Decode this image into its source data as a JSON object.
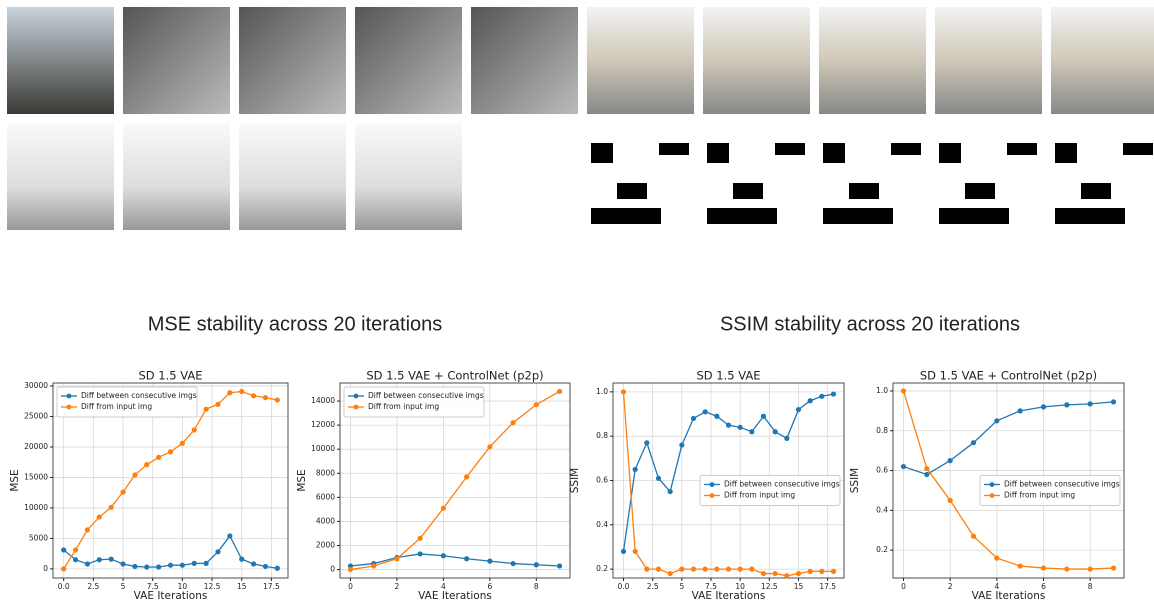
{
  "headings": [
    "MSE stability across 20 iterations",
    "SSIM stability across 20 iterations"
  ],
  "chart_data": [
    {
      "type": "line",
      "title": "SD 1.5 VAE",
      "x_label": "VAE Iterations",
      "y_label": "MSE",
      "x": [
        0,
        1,
        2,
        3,
        4,
        5,
        6,
        7,
        8,
        9,
        10,
        11,
        12,
        13,
        14,
        15,
        16,
        17,
        18
      ],
      "series": [
        {
          "name": "Diff between consecutive imgs",
          "color": "#1f77b4",
          "values": [
            3100,
            1500,
            800,
            1500,
            1600,
            800,
            400,
            300,
            300,
            600,
            600,
            900,
            900,
            2800,
            5400,
            1600,
            800,
            400,
            100
          ]
        },
        {
          "name": "Diff from input img",
          "color": "#ff7f0e",
          "values": [
            0,
            3100,
            6400,
            8500,
            10100,
            12600,
            15400,
            17100,
            18300,
            19200,
            20600,
            22800,
            26200,
            27000,
            28900,
            29100,
            28400,
            28100,
            27700
          ]
        }
      ],
      "xlim": [
        -0.9,
        18.9
      ],
      "ylim": [
        -1500,
        30500
      ],
      "xticks": [
        {
          "value": 0,
          "label": "0.0"
        },
        2.5,
        5,
        7.5,
        10,
        12.5,
        15,
        17.5
      ],
      "yticks": [
        0,
        5000,
        10000,
        15000,
        20000,
        25000,
        30000
      ],
      "grid": true,
      "legend": "upper-left"
    },
    {
      "type": "line",
      "title": "SD 1.5 VAE + ControlNet (p2p)",
      "x_label": "VAE Iterations",
      "y_label": "MSE",
      "x": [
        0,
        1,
        2,
        3,
        4,
        5,
        6,
        7,
        8,
        9
      ],
      "series": [
        {
          "name": "Diff between consecutive imgs",
          "color": "#1f77b4",
          "values": [
            300,
            500,
            1000,
            1300,
            1150,
            900,
            700,
            500,
            400,
            300
          ]
        },
        {
          "name": "Diff from input img",
          "color": "#ff7f0e",
          "values": [
            0,
            300,
            900,
            2600,
            5100,
            7700,
            10200,
            12200,
            13700,
            14800
          ]
        }
      ],
      "xlim": [
        -0.45,
        9.45
      ],
      "ylim": [
        -700,
        15500
      ],
      "xticks": [
        0,
        2,
        4,
        6,
        8
      ],
      "yticks": [
        0,
        2000,
        4000,
        6000,
        8000,
        10000,
        12000,
        14000
      ],
      "grid": true,
      "legend": "upper-left"
    },
    {
      "type": "line",
      "title": "SD 1.5 VAE",
      "x_label": "VAE Iterations",
      "y_label": "SSIM",
      "x": [
        0,
        1,
        2,
        3,
        4,
        5,
        6,
        7,
        8,
        9,
        10,
        11,
        12,
        13,
        14,
        15,
        16,
        17,
        18
      ],
      "series": [
        {
          "name": "Diff between consecutive imgs",
          "color": "#1f77b4",
          "values": [
            0.28,
            0.65,
            0.77,
            0.61,
            0.55,
            0.76,
            0.88,
            0.91,
            0.89,
            0.85,
            0.84,
            0.82,
            0.89,
            0.82,
            0.79,
            0.92,
            0.96,
            0.98,
            0.99
          ]
        },
        {
          "name": "Diff from input img",
          "color": "#ff7f0e",
          "values": [
            1.0,
            0.28,
            0.2,
            0.2,
            0.18,
            0.2,
            0.2,
            0.2,
            0.2,
            0.2,
            0.2,
            0.2,
            0.18,
            0.18,
            0.17,
            0.18,
            0.19,
            0.19,
            0.19
          ]
        }
      ],
      "xlim": [
        -0.9,
        18.9
      ],
      "ylim": [
        0.16,
        1.04
      ],
      "xticks": [
        {
          "value": 0,
          "label": "0.0"
        },
        2.5,
        5,
        7.5,
        10,
        12.5,
        15,
        17.5
      ],
      "yticks": [
        0.2,
        0.4,
        0.6,
        0.8,
        {
          "value": 1,
          "label": "1.0"
        }
      ],
      "grid": true,
      "legend": "center-right"
    },
    {
      "type": "line",
      "title": "SD 1.5 VAE + ControlNet (p2p)",
      "x_label": "VAE Iterations",
      "y_label": "SSIM",
      "x": [
        0,
        1,
        2,
        3,
        4,
        5,
        6,
        7,
        8,
        9
      ],
      "series": [
        {
          "name": "Diff between consecutive imgs",
          "color": "#1f77b4",
          "values": [
            0.62,
            0.58,
            0.65,
            0.74,
            0.85,
            0.9,
            0.92,
            0.93,
            0.935,
            0.945
          ]
        },
        {
          "name": "Diff from input img",
          "color": "#ff7f0e",
          "values": [
            1.0,
            0.61,
            0.45,
            0.27,
            0.16,
            0.12,
            0.11,
            0.105,
            0.105,
            0.11
          ]
        }
      ],
      "xlim": [
        -0.45,
        9.45
      ],
      "ylim": [
        0.06,
        1.04
      ],
      "xticks": [
        0,
        2,
        4,
        6,
        8
      ],
      "yticks": [
        0.2,
        0.4,
        0.6,
        0.8,
        {
          "value": 1,
          "label": "1.0"
        }
      ],
      "grid": true,
      "legend": "center-right"
    }
  ]
}
